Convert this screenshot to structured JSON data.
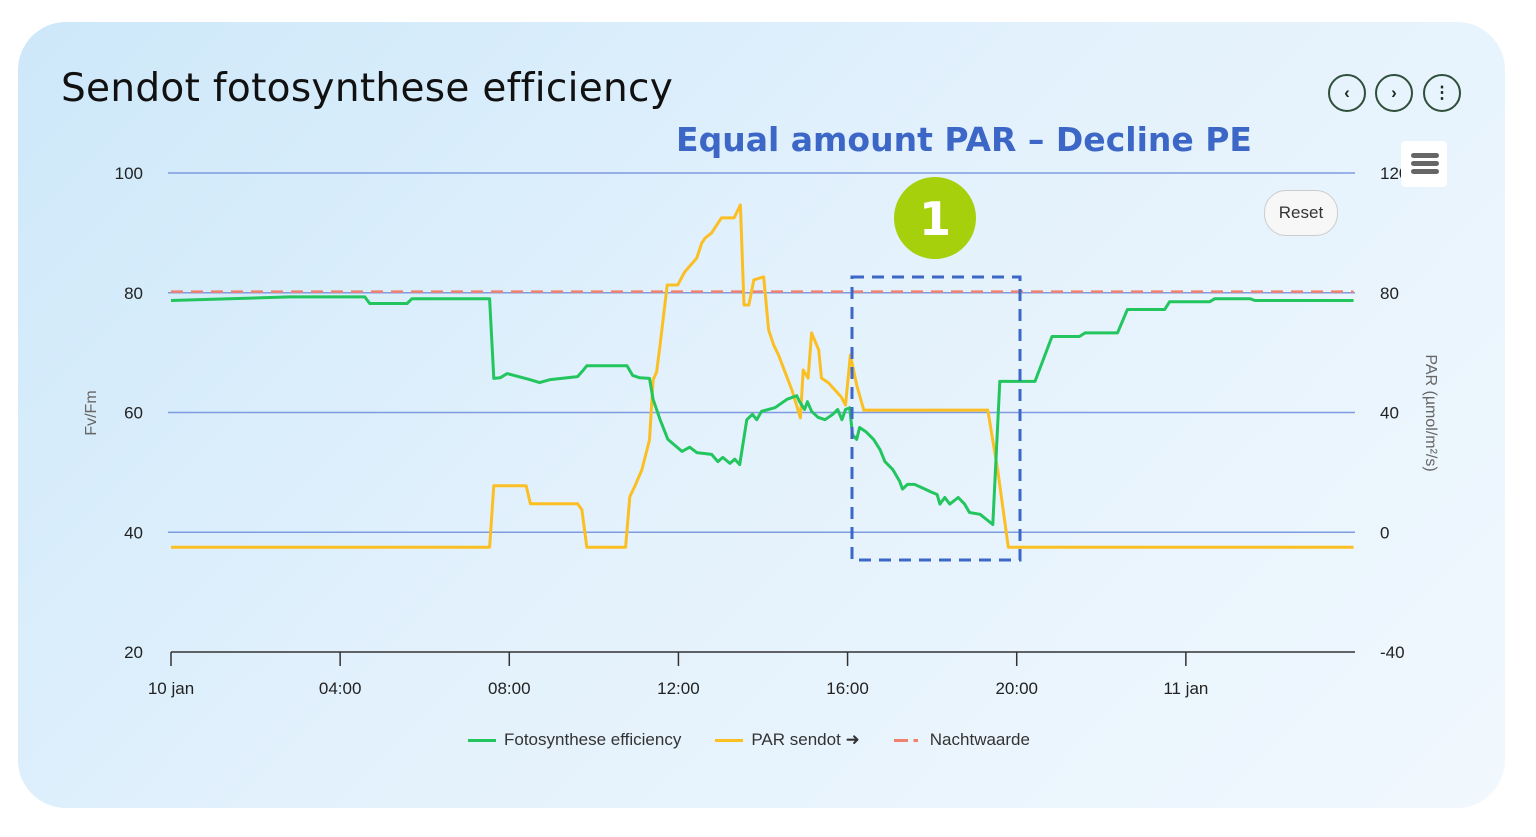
{
  "header": {
    "title": "Sendot fotosynthese efficiency"
  },
  "nav": {
    "prev_icon": "chevron-left-icon",
    "next_icon": "chevron-right-icon",
    "more_icon": "more-vertical-icon",
    "prev": "‹",
    "next": "›",
    "more": "⋮"
  },
  "toolbar": {
    "menu_icon": "hamburger-icon",
    "reset_label": "Reset"
  },
  "annotation": {
    "text": "Equal amount PAR – Decline PE",
    "badge": "1",
    "badge_color": "#a6cf0c",
    "box_color": "#3d67c6"
  },
  "colors": {
    "green": "#22c55e",
    "yellow": "#fbbf24",
    "red": "#f08070",
    "grid": "#7f9be0"
  },
  "chart_data": {
    "type": "line",
    "title": "",
    "xlabel": "",
    "ylabel": "Fv/Fm",
    "y2label": "PAR (µmol/m²/s)",
    "ylim": [
      20,
      100
    ],
    "y2lim": [
      -40,
      120
    ],
    "yticks": [
      "20",
      "40",
      "60",
      "80",
      "100"
    ],
    "y2ticks": [
      "-40",
      "0",
      "40",
      "80",
      "120"
    ],
    "xlim": [
      "10 jan 00:00",
      "11 jan 04:00"
    ],
    "xticks": [
      "10 jan",
      "04:00",
      "08:00",
      "12:00",
      "16:00",
      "20:00",
      "11 jan"
    ],
    "grid": true,
    "legend": "bottom",
    "series": [
      {
        "name": "Fotosynthese efficiency",
        "axis": "left",
        "color": "#22c55e",
        "x": [
          "10 jan 00:00",
          "10 jan 02:49",
          "10 jan 04:35",
          "10 jan 04:42",
          "10 jan 05:35",
          "10 jan 05:42",
          "10 jan 07:32",
          "10 jan 07:38",
          "10 jan 07:47",
          "10 jan 07:57",
          "10 jan 08:29",
          "10 jan 08:43",
          "10 jan 08:58",
          "10 jan 09:37",
          "10 jan 09:43",
          "10 jan 09:50",
          "10 jan 10:47",
          "10 jan 10:55",
          "10 jan 11:05",
          "10 jan 11:19",
          "10 jan 11:24",
          "10 jan 11:34",
          "10 jan 11:45",
          "10 jan 11:55",
          "10 jan 12:05",
          "10 jan 12:16",
          "10 jan 12:26",
          "10 jan 12:47",
          "10 jan 12:56",
          "10 jan 13:03",
          "10 jan 13:13",
          "10 jan 13:20",
          "10 jan 13:27",
          "10 jan 13:37",
          "10 jan 13:45",
          "10 jan 13:51",
          "10 jan 13:58",
          "10 jan 14:17",
          "10 jan 14:34",
          "10 jan 14:48",
          "10 jan 14:52",
          "10 jan 14:59",
          "10 jan 15:03",
          "10 jan 15:09",
          "10 jan 15:18",
          "10 jan 15:28",
          "10 jan 15:39",
          "10 jan 15:46",
          "10 jan 15:52",
          "10 jan 15:57",
          "10 jan 16:03",
          "10 jan 16:07",
          "10 jan 16:13",
          "10 jan 16:17",
          "10 jan 16:26",
          "10 jan 16:37",
          "10 jan 16:46",
          "10 jan 16:53",
          "10 jan 17:04",
          "10 jan 17:14",
          "10 jan 17:18",
          "10 jan 17:25",
          "10 jan 17:35",
          "10 jan 17:50",
          "10 jan 17:57",
          "10 jan 18:07",
          "10 jan 18:11",
          "10 jan 18:18",
          "10 jan 18:25",
          "10 jan 18:37",
          "10 jan 18:46",
          "10 jan 18:53",
          "10 jan 19:08",
          "10 jan 19:26",
          "10 jan 19:36",
          "10 jan 20:26",
          "10 jan 20:50",
          "10 jan 21:29",
          "10 jan 21:37",
          "10 jan 22:23",
          "10 jan 22:37",
          "10 jan 23:30",
          "10 jan 23:37",
          "11 jan 00:34",
          "11 jan 00:41",
          "11 jan 01:31",
          "11 jan 01:38",
          "11 jan 03:58"
        ],
        "values": [
          78.7,
          79.3,
          79.3,
          78.2,
          78.2,
          79,
          79,
          65.7,
          65.8,
          66.5,
          65.5,
          65,
          65.5,
          66,
          66.8,
          67.8,
          67.8,
          66.2,
          65.8,
          65.7,
          62.2,
          58.8,
          55.5,
          54.5,
          53.5,
          54.2,
          53.3,
          53,
          51.8,
          52.5,
          51.5,
          52.2,
          51.3,
          58.8,
          59.7,
          58.8,
          60.2,
          60.8,
          62.2,
          62.8,
          61.8,
          60.5,
          61.8,
          60.2,
          59.2,
          58.8,
          59.7,
          60.5,
          58.8,
          60.5,
          60.8,
          56.3,
          55.5,
          57.5,
          56.8,
          55.5,
          53.8,
          51.8,
          50.5,
          48.5,
          47.2,
          48,
          48,
          47.2,
          46.8,
          46.3,
          44.7,
          45.8,
          44.7,
          45.8,
          44.7,
          43.3,
          43,
          41.3,
          65.2,
          65.2,
          72.7,
          72.7,
          73.3,
          73.3,
          77.2,
          77.2,
          78.5,
          78.5,
          79,
          79,
          78.7,
          78.7
        ]
      },
      {
        "name": "PAR sendot ➜",
        "axis": "right",
        "color": "#fbbf24",
        "x": [
          "10 jan 00:00",
          "10 jan 07:32",
          "10 jan 07:38",
          "10 jan 08:24",
          "10 jan 08:30",
          "10 jan 09:37",
          "10 jan 09:43",
          "10 jan 09:50",
          "10 jan 10:45",
          "10 jan 10:51",
          "10 jan 10:59",
          "10 jan 11:08",
          "10 jan 11:19",
          "10 jan 11:24",
          "10 jan 11:29",
          "10 jan 11:34",
          "10 jan 11:44",
          "10 jan 11:59",
          "10 jan 12:09",
          "10 jan 12:26",
          "10 jan 12:33",
          "10 jan 12:38",
          "10 jan 12:47",
          "10 jan 13:01",
          "10 jan 13:19",
          "10 jan 13:28",
          "10 jan 13:33",
          "10 jan 13:40",
          "10 jan 13:47",
          "10 jan 14:01",
          "10 jan 14:08",
          "10 jan 14:15",
          "10 jan 14:22",
          "10 jan 14:41",
          "10 jan 14:53",
          "10 jan 14:57",
          "10 jan 15:04",
          "10 jan 15:09",
          "10 jan 15:19",
          "10 jan 15:23",
          "10 jan 15:33",
          "10 jan 15:51",
          "10 jan 15:57",
          "10 jan 16:04",
          "10 jan 16:13",
          "10 jan 16:23",
          "10 jan 19:19",
          "10 jan 19:33",
          "10 jan 19:48",
          "11 jan 03:58"
        ],
        "values": [
          -5,
          -5,
          15.5,
          15.5,
          9.5,
          9.5,
          7.5,
          -5,
          -5,
          11.8,
          15.8,
          20.8,
          30.8,
          50.9,
          53.5,
          62.6,
          82.6,
          82.6,
          87,
          91.6,
          96.6,
          98.3,
          100,
          105,
          105,
          109.3,
          75.9,
          75.9,
          84.3,
          85.3,
          67.6,
          62.6,
          59.2,
          47.5,
          38.2,
          54.2,
          51.5,
          66.6,
          60.9,
          51.5,
          49.9,
          45.2,
          42.5,
          59.2,
          49.2,
          40.8,
          40.8,
          20.8,
          -5,
          -5
        ]
      },
      {
        "name": "Nachtwaarde",
        "axis": "left",
        "color": "#f08070",
        "dashed": true,
        "x": [
          "10 jan 00:00",
          "11 jan 03:58"
        ],
        "values": [
          80.2,
          80.2
        ]
      }
    ]
  }
}
